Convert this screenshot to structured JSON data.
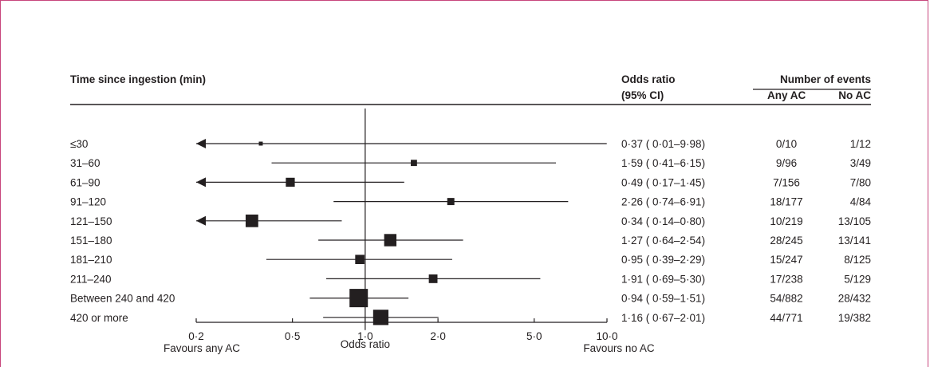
{
  "headers": {
    "time": "Time since ingestion (min)",
    "or_line1": "Odds ratio",
    "or_line2": "(95% CI)",
    "events": "Number of events",
    "any_ac": "Any AC",
    "no_ac": "No AC"
  },
  "colors": {
    "frame": "#c8467c",
    "ink": "#231f20"
  },
  "chart_data": {
    "type": "forest",
    "x_scale": "log",
    "xlim": [
      0.2,
      10.0
    ],
    "reference_line": 1.0,
    "xlabel": "Odds ratio",
    "ticks": [
      {
        "value": 0.2,
        "label": "0·2"
      },
      {
        "value": 0.5,
        "label": "0·5"
      },
      {
        "value": 1.0,
        "label": "1·0"
      },
      {
        "value": 2.0,
        "label": "2·0"
      },
      {
        "value": 5.0,
        "label": "5·0"
      },
      {
        "value": 10.0,
        "label": "10·0"
      }
    ],
    "favours_left": "Favours any AC",
    "favours_right": "Favours no AC",
    "rows": [
      {
        "label": "≤30",
        "or": 0.37,
        "lo": 0.01,
        "hi": 9.98,
        "ci_text": "0·37 ( 0·01–9·98)",
        "any_ac": "0/10",
        "no_ac": "1/12",
        "weight": 0.05
      },
      {
        "label": "31–60",
        "or": 1.59,
        "lo": 0.41,
        "hi": 6.15,
        "ci_text": "1·59 ( 0·41–6·15)",
        "any_ac": "9/96",
        "no_ac": "3/49",
        "weight": 0.2
      },
      {
        "label": "61–90",
        "or": 0.49,
        "lo": 0.17,
        "hi": 1.45,
        "ci_text": "0·49 ( 0·17–1·45)",
        "any_ac": "7/156",
        "no_ac": "7/80",
        "weight": 0.38
      },
      {
        "label": "91–120",
        "or": 2.26,
        "lo": 0.74,
        "hi": 6.91,
        "ci_text": "2·26 ( 0·74–6·91)",
        "any_ac": "18/177",
        "no_ac": "4/84",
        "weight": 0.26
      },
      {
        "label": "121–150",
        "or": 0.34,
        "lo": 0.14,
        "hi": 0.8,
        "ci_text": "0·34 ( 0·14–0·80)",
        "any_ac": "10/219",
        "no_ac": "13/105",
        "weight": 0.62
      },
      {
        "label": "151–180",
        "or": 1.27,
        "lo": 0.64,
        "hi": 2.54,
        "ci_text": "1·27 ( 0·64–2·54)",
        "any_ac": "28/245",
        "no_ac": "13/141",
        "weight": 0.6
      },
      {
        "label": "181–210",
        "or": 0.95,
        "lo": 0.39,
        "hi": 2.29,
        "ci_text": "0·95 ( 0·39–2·29)",
        "any_ac": "15/247",
        "no_ac": "8/125",
        "weight": 0.4
      },
      {
        "label": "211–240",
        "or": 1.91,
        "lo": 0.69,
        "hi": 5.3,
        "ci_text": "1·91 ( 0·69–5·30)",
        "any_ac": "17/238",
        "no_ac": "5/129",
        "weight": 0.36
      },
      {
        "label": "Between 240 and 420",
        "or": 0.94,
        "lo": 0.59,
        "hi": 1.51,
        "ci_text": "0·94 ( 0·59–1·51)",
        "any_ac": "54/882",
        "no_ac": "28/432",
        "weight": 1.0
      },
      {
        "label": "420 or more",
        "or": 1.16,
        "lo": 0.67,
        "hi": 2.01,
        "ci_text": "1·16 ( 0·67–2·01)",
        "any_ac": "44/771",
        "no_ac": "19/382",
        "weight": 0.8
      }
    ]
  }
}
